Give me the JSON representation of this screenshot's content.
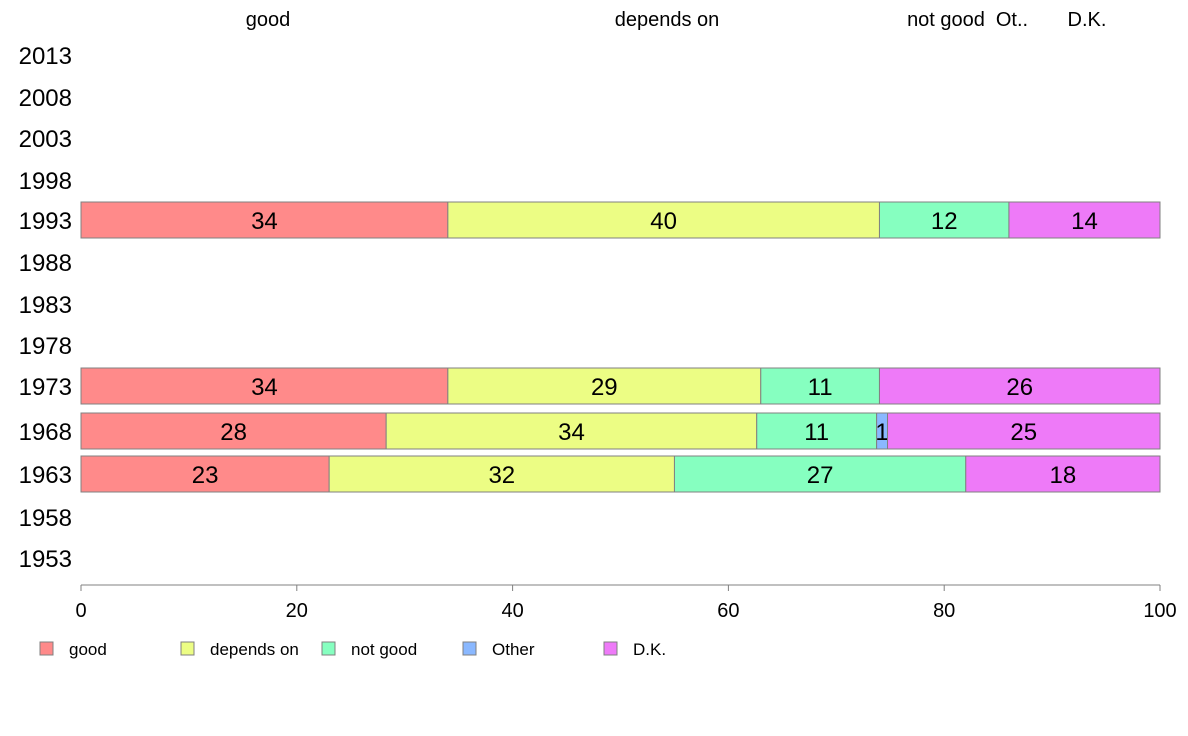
{
  "chart_data": {
    "type": "bar",
    "orientation": "horizontal",
    "stacked": true,
    "categories": [
      "2013",
      "2008",
      "2003",
      "1998",
      "1993",
      "1988",
      "1983",
      "1978",
      "1973",
      "1968",
      "1963",
      "1958",
      "1953"
    ],
    "series": [
      {
        "name": "good",
        "color": "#ff8a8a",
        "values": [
          null,
          null,
          null,
          null,
          34,
          null,
          null,
          null,
          34,
          28,
          23,
          null,
          null
        ]
      },
      {
        "name": "depends on",
        "color": "#ecfd84",
        "values": [
          null,
          null,
          null,
          null,
          40,
          null,
          null,
          null,
          29,
          34,
          32,
          null,
          null
        ]
      },
      {
        "name": "not good",
        "color": "#86ffc0",
        "values": [
          null,
          null,
          null,
          null,
          12,
          null,
          null,
          null,
          11,
          11,
          27,
          null,
          null
        ]
      },
      {
        "name": "Other",
        "color": "#8ab8ff",
        "values": [
          null,
          null,
          null,
          null,
          0,
          null,
          null,
          null,
          0,
          1,
          0,
          null,
          null
        ]
      },
      {
        "name": "D.K.",
        "color": "#ee7af8",
        "values": [
          null,
          null,
          null,
          null,
          14,
          null,
          null,
          null,
          26,
          25,
          18,
          null,
          null
        ]
      }
    ],
    "top_labels": [
      "good",
      "depends on",
      "not good",
      "Ot..",
      "D.K."
    ],
    "xlim": [
      0,
      100
    ],
    "xticks": [
      0,
      20,
      40,
      60,
      80,
      100
    ],
    "legend_position": "bottom",
    "grid": false
  }
}
